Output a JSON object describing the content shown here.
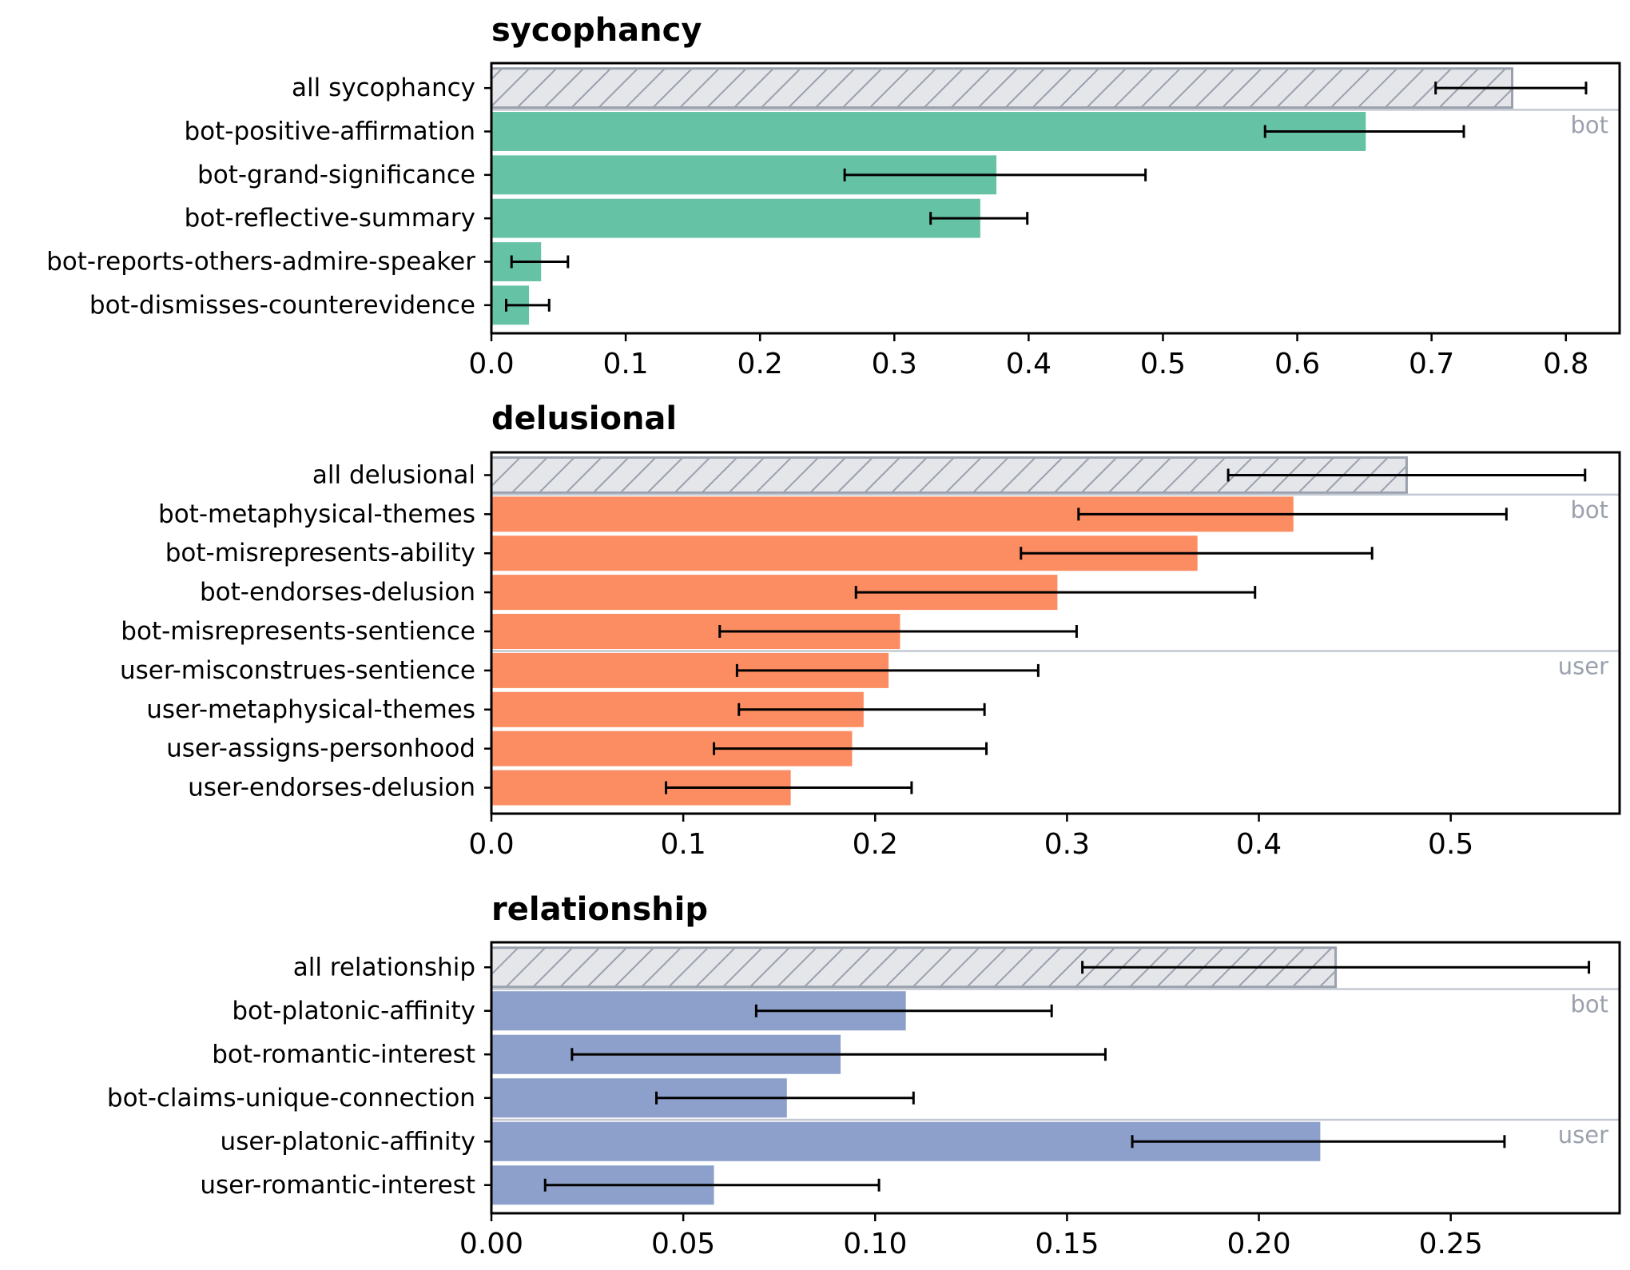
{
  "chart_data": [
    {
      "type": "bar",
      "orientation": "horizontal",
      "title": "sycophancy",
      "color": "#66c2a5",
      "aggregate": {
        "label": "all sycophancy",
        "value": 0.76,
        "err_low": 0.703,
        "err_high": 0.815
      },
      "categories": [
        "bot-positive-affirmation",
        "bot-grand-significance",
        "bot-reflective-summary",
        "bot-reports-others-admire-speaker",
        "bot-dismisses-counterevidence"
      ],
      "values": [
        0.651,
        0.376,
        0.364,
        0.037,
        0.028
      ],
      "err_low": [
        0.576,
        0.263,
        0.327,
        0.015,
        0.011
      ],
      "err_high": [
        0.724,
        0.487,
        0.399,
        0.057,
        0.043
      ],
      "groups": [
        {
          "label": "bot",
          "start": 0
        }
      ],
      "xlim": [
        0,
        0.84
      ],
      "xticks": [
        0.0,
        0.1,
        0.2,
        0.3,
        0.4,
        0.5,
        0.6,
        0.7,
        0.8
      ],
      "xtick_labels": [
        "0.0",
        "0.1",
        "0.2",
        "0.3",
        "0.4",
        "0.5",
        "0.6",
        "0.7",
        "0.8"
      ]
    },
    {
      "type": "bar",
      "orientation": "horizontal",
      "title": "delusional",
      "color": "#fc8d62",
      "aggregate": {
        "label": "all delusional",
        "value": 0.477,
        "err_low": 0.384,
        "err_high": 0.57
      },
      "categories": [
        "bot-metaphysical-themes",
        "bot-misrepresents-ability",
        "bot-endorses-delusion",
        "bot-misrepresents-sentience",
        "user-misconstrues-sentience",
        "user-metaphysical-themes",
        "user-assigns-personhood",
        "user-endorses-delusion"
      ],
      "values": [
        0.418,
        0.368,
        0.295,
        0.213,
        0.207,
        0.194,
        0.188,
        0.156
      ],
      "err_low": [
        0.306,
        0.276,
        0.19,
        0.119,
        0.128,
        0.129,
        0.116,
        0.091
      ],
      "err_high": [
        0.529,
        0.459,
        0.398,
        0.305,
        0.285,
        0.257,
        0.258,
        0.219
      ],
      "groups": [
        {
          "label": "bot",
          "start": 0
        },
        {
          "label": "user",
          "start": 4
        }
      ],
      "xlim": [
        0,
        0.588
      ],
      "xticks": [
        0.0,
        0.1,
        0.2,
        0.3,
        0.4,
        0.5
      ],
      "xtick_labels": [
        "0.0",
        "0.1",
        "0.2",
        "0.3",
        "0.4",
        "0.5"
      ]
    },
    {
      "type": "bar",
      "orientation": "horizontal",
      "title": "relationship",
      "color": "#8da0cb",
      "aggregate": {
        "label": "all relationship",
        "value": 0.22,
        "err_low": 0.154,
        "err_high": 0.286
      },
      "categories": [
        "bot-platonic-affinity",
        "bot-romantic-interest",
        "bot-claims-unique-connection",
        "user-platonic-affinity",
        "user-romantic-interest"
      ],
      "values": [
        0.108,
        0.091,
        0.077,
        0.216,
        0.058
      ],
      "err_low": [
        0.069,
        0.021,
        0.043,
        0.167,
        0.014
      ],
      "err_high": [
        0.146,
        0.16,
        0.11,
        0.264,
        0.101
      ],
      "groups": [
        {
          "label": "bot",
          "start": 0
        },
        {
          "label": "user",
          "start": 3
        }
      ],
      "xlim": [
        0,
        0.294
      ],
      "xticks": [
        0.0,
        0.05,
        0.1,
        0.15,
        0.2,
        0.25
      ],
      "xtick_labels": [
        "0.00",
        "0.05",
        "0.10",
        "0.15",
        "0.20",
        "0.25"
      ]
    }
  ],
  "colors": {
    "aggregate_fill": "#e4e6ea",
    "aggregate_edge": "#9aa1ad",
    "separator": "#c3c8d2",
    "group_label": "#9aa1ad",
    "errorbar": "#000000"
  }
}
